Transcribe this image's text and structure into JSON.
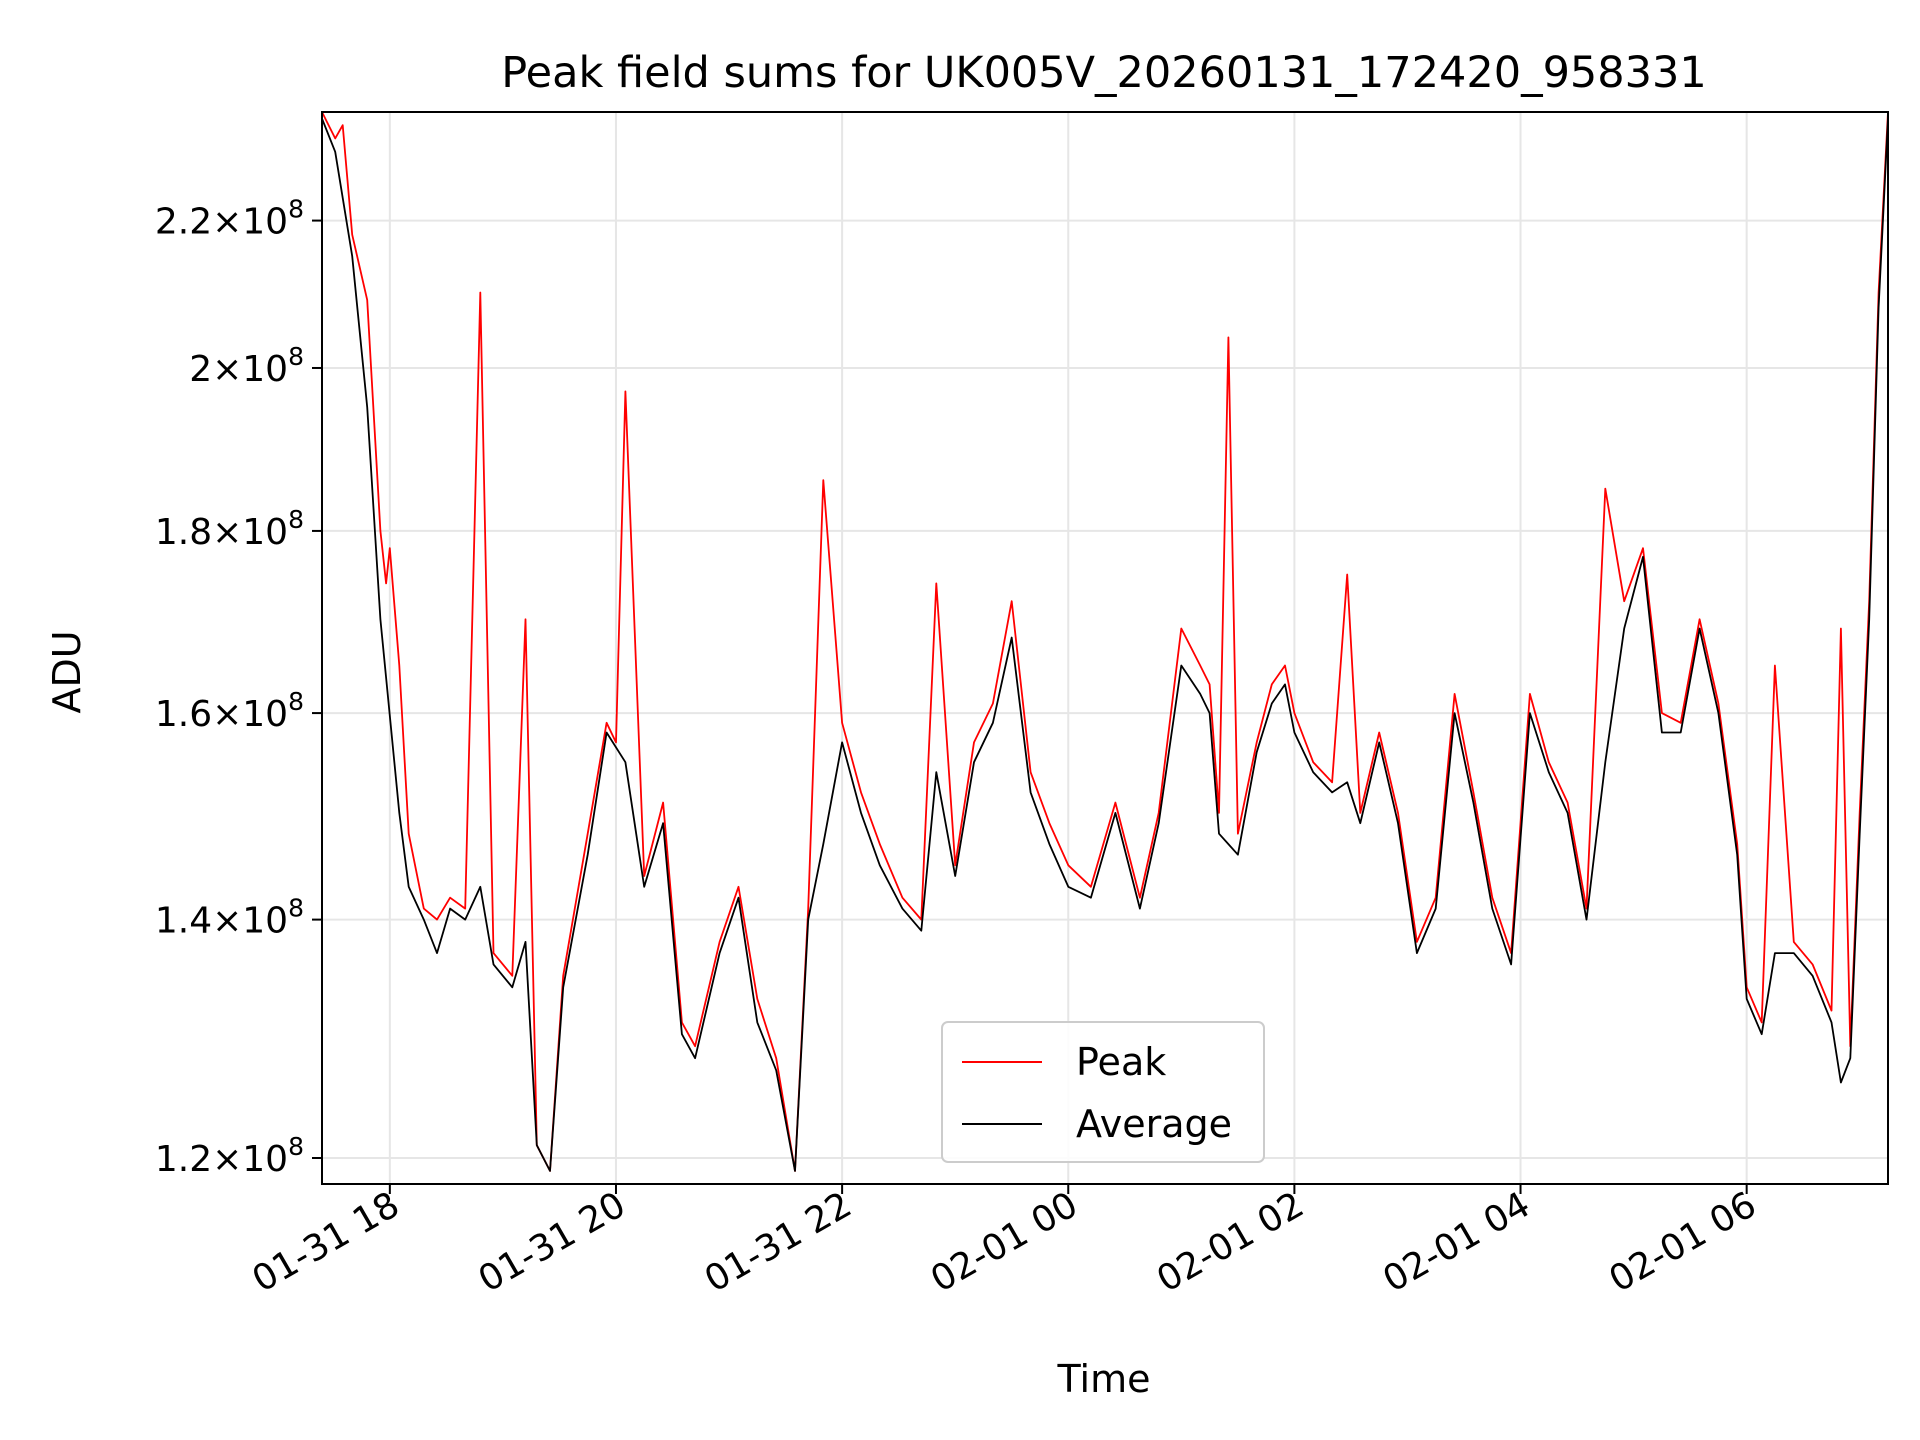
{
  "chart_data": {
    "type": "line",
    "title": "Peak field sums for UK005V_20260131_172420_958331",
    "xlabel": "Time",
    "ylabel": "ADU",
    "x_type": "datetime",
    "x_ticks": [
      "01-31 18",
      "01-31 20",
      "01-31 22",
      "02-01 00",
      "02-01 02",
      "02-01 04",
      "02-01 06"
    ],
    "xlim": [
      "2026-01-31 17:24",
      "2026-02-01 07:15"
    ],
    "y_scale": "log",
    "ylim": [
      118000000,
      236000000
    ],
    "y_ticks": [
      {
        "value": 120000000,
        "mantissa": "1.2",
        "exp": "8"
      },
      {
        "value": 140000000,
        "mantissa": "1.4",
        "exp": "8"
      },
      {
        "value": 160000000,
        "mantissa": "1.6",
        "exp": "8"
      },
      {
        "value": 180000000,
        "mantissa": "1.8",
        "exp": "8"
      },
      {
        "value": 200000000,
        "mantissa": "2",
        "exp": "8"
      },
      {
        "value": 220000000,
        "mantissa": "2.2",
        "exp": "8"
      }
    ],
    "grid": true,
    "legend_position": "lower-center",
    "series": [
      {
        "name": "Peak",
        "color": "#ff0000",
        "points": [
          [
            "2026-01-31 17:24",
            236000000
          ],
          [
            "2026-01-31 17:31",
            232000000
          ],
          [
            "2026-01-31 17:35",
            234000000
          ],
          [
            "2026-01-31 17:40",
            218000000
          ],
          [
            "2026-01-31 17:48",
            209000000
          ],
          [
            "2026-01-31 17:55",
            180000000
          ],
          [
            "2026-01-31 17:58",
            174000000
          ],
          [
            "2026-01-31 18:00",
            178000000
          ],
          [
            "2026-01-31 18:05",
            165000000
          ],
          [
            "2026-01-31 18:10",
            148000000
          ],
          [
            "2026-01-31 18:18",
            141000000
          ],
          [
            "2026-01-31 18:25",
            140000000
          ],
          [
            "2026-01-31 18:32",
            142000000
          ],
          [
            "2026-01-31 18:40",
            141000000
          ],
          [
            "2026-01-31 18:48",
            210000000
          ],
          [
            "2026-01-31 18:55",
            137000000
          ],
          [
            "2026-01-31 19:05",
            135000000
          ],
          [
            "2026-01-31 19:12",
            170000000
          ],
          [
            "2026-01-31 19:18",
            121000000
          ],
          [
            "2026-01-31 19:25",
            119000000
          ],
          [
            "2026-01-31 19:32",
            135000000
          ],
          [
            "2026-01-31 19:45",
            148000000
          ],
          [
            "2026-01-31 19:55",
            159000000
          ],
          [
            "2026-01-31 20:00",
            157000000
          ],
          [
            "2026-01-31 20:05",
            197000000
          ],
          [
            "2026-01-31 20:15",
            144000000
          ],
          [
            "2026-01-31 20:25",
            151000000
          ],
          [
            "2026-01-31 20:35",
            131000000
          ],
          [
            "2026-01-31 20:42",
            129000000
          ],
          [
            "2026-01-31 20:55",
            138000000
          ],
          [
            "2026-01-31 21:05",
            143000000
          ],
          [
            "2026-01-31 21:15",
            133000000
          ],
          [
            "2026-01-31 21:25",
            128000000
          ],
          [
            "2026-01-31 21:35",
            119000000
          ],
          [
            "2026-01-31 21:42",
            141000000
          ],
          [
            "2026-01-31 21:50",
            186000000
          ],
          [
            "2026-01-31 22:00",
            159000000
          ],
          [
            "2026-01-31 22:10",
            152000000
          ],
          [
            "2026-01-31 22:20",
            147000000
          ],
          [
            "2026-01-31 22:32",
            142000000
          ],
          [
            "2026-01-31 22:42",
            140000000
          ],
          [
            "2026-01-31 22:50",
            174000000
          ],
          [
            "2026-01-31 23:00",
            145000000
          ],
          [
            "2026-01-31 23:10",
            157000000
          ],
          [
            "2026-01-31 23:20",
            161000000
          ],
          [
            "2026-01-31 23:30",
            172000000
          ],
          [
            "2026-01-31 23:40",
            154000000
          ],
          [
            "2026-01-31 23:50",
            149000000
          ],
          [
            "2026-02-01 00:00",
            145000000
          ],
          [
            "2026-02-01 00:12",
            143000000
          ],
          [
            "2026-02-01 00:25",
            151000000
          ],
          [
            "2026-02-01 00:38",
            142000000
          ],
          [
            "2026-02-01 00:48",
            150000000
          ],
          [
            "2026-02-01 01:00",
            169000000
          ],
          [
            "2026-02-01 01:10",
            165000000
          ],
          [
            "2026-02-01 01:15",
            163000000
          ],
          [
            "2026-02-01 01:20",
            150000000
          ],
          [
            "2026-02-01 01:25",
            204000000
          ],
          [
            "2026-02-01 01:30",
            148000000
          ],
          [
            "2026-02-01 01:40",
            157000000
          ],
          [
            "2026-02-01 01:48",
            163000000
          ],
          [
            "2026-02-01 01:55",
            165000000
          ],
          [
            "2026-02-01 02:00",
            160000000
          ],
          [
            "2026-02-01 02:10",
            155000000
          ],
          [
            "2026-02-01 02:20",
            153000000
          ],
          [
            "2026-02-01 02:28",
            175000000
          ],
          [
            "2026-02-01 02:35",
            150000000
          ],
          [
            "2026-02-01 02:45",
            158000000
          ],
          [
            "2026-02-01 02:55",
            150000000
          ],
          [
            "2026-02-01 03:05",
            138000000
          ],
          [
            "2026-02-01 03:15",
            142000000
          ],
          [
            "2026-02-01 03:25",
            162000000
          ],
          [
            "2026-02-01 03:35",
            152000000
          ],
          [
            "2026-02-01 03:45",
            142000000
          ],
          [
            "2026-02-01 03:55",
            137000000
          ],
          [
            "2026-02-01 04:05",
            162000000
          ],
          [
            "2026-02-01 04:15",
            155000000
          ],
          [
            "2026-02-01 04:25",
            151000000
          ],
          [
            "2026-02-01 04:35",
            141000000
          ],
          [
            "2026-02-01 04:45",
            185000000
          ],
          [
            "2026-02-01 04:55",
            172000000
          ],
          [
            "2026-02-01 05:05",
            178000000
          ],
          [
            "2026-02-01 05:15",
            160000000
          ],
          [
            "2026-02-01 05:25",
            159000000
          ],
          [
            "2026-02-01 05:35",
            170000000
          ],
          [
            "2026-02-01 05:45",
            161000000
          ],
          [
            "2026-02-01 05:55",
            147000000
          ],
          [
            "2026-02-01 06:00",
            134000000
          ],
          [
            "2026-02-01 06:08",
            131000000
          ],
          [
            "2026-02-01 06:15",
            165000000
          ],
          [
            "2026-02-01 06:25",
            138000000
          ],
          [
            "2026-02-01 06:35",
            136000000
          ],
          [
            "2026-02-01 06:45",
            132000000
          ],
          [
            "2026-02-01 06:50",
            169000000
          ],
          [
            "2026-02-01 06:55",
            129000000
          ],
          [
            "2026-02-01 07:00",
            150000000
          ],
          [
            "2026-02-01 07:05",
            172000000
          ],
          [
            "2026-02-01 07:10",
            210000000
          ],
          [
            "2026-02-01 07:15",
            236000000
          ]
        ]
      },
      {
        "name": "Average",
        "color": "#000000",
        "points": [
          [
            "2026-01-31 17:24",
            235000000
          ],
          [
            "2026-01-31 17:31",
            230000000
          ],
          [
            "2026-01-31 17:40",
            215000000
          ],
          [
            "2026-01-31 17:48",
            195000000
          ],
          [
            "2026-01-31 17:55",
            170000000
          ],
          [
            "2026-01-31 18:05",
            150000000
          ],
          [
            "2026-01-31 18:10",
            143000000
          ],
          [
            "2026-01-31 18:18",
            140000000
          ],
          [
            "2026-01-31 18:25",
            137000000
          ],
          [
            "2026-01-31 18:32",
            141000000
          ],
          [
            "2026-01-31 18:40",
            140000000
          ],
          [
            "2026-01-31 18:48",
            143000000
          ],
          [
            "2026-01-31 18:55",
            136000000
          ],
          [
            "2026-01-31 19:05",
            134000000
          ],
          [
            "2026-01-31 19:12",
            138000000
          ],
          [
            "2026-01-31 19:18",
            121000000
          ],
          [
            "2026-01-31 19:25",
            119000000
          ],
          [
            "2026-01-31 19:32",
            134000000
          ],
          [
            "2026-01-31 19:45",
            146000000
          ],
          [
            "2026-01-31 19:55",
            158000000
          ],
          [
            "2026-01-31 20:05",
            155000000
          ],
          [
            "2026-01-31 20:15",
            143000000
          ],
          [
            "2026-01-31 20:25",
            149000000
          ],
          [
            "2026-01-31 20:35",
            130000000
          ],
          [
            "2026-01-31 20:42",
            128000000
          ],
          [
            "2026-01-31 20:55",
            137000000
          ],
          [
            "2026-01-31 21:05",
            142000000
          ],
          [
            "2026-01-31 21:15",
            131000000
          ],
          [
            "2026-01-31 21:25",
            127000000
          ],
          [
            "2026-01-31 21:35",
            119000000
          ],
          [
            "2026-01-31 21:42",
            140000000
          ],
          [
            "2026-01-31 21:50",
            147000000
          ],
          [
            "2026-01-31 22:00",
            157000000
          ],
          [
            "2026-01-31 22:10",
            150000000
          ],
          [
            "2026-01-31 22:20",
            145000000
          ],
          [
            "2026-01-31 22:32",
            141000000
          ],
          [
            "2026-01-31 22:42",
            139000000
          ],
          [
            "2026-01-31 22:50",
            154000000
          ],
          [
            "2026-01-31 23:00",
            144000000
          ],
          [
            "2026-01-31 23:10",
            155000000
          ],
          [
            "2026-01-31 23:20",
            159000000
          ],
          [
            "2026-01-31 23:30",
            168000000
          ],
          [
            "2026-01-31 23:40",
            152000000
          ],
          [
            "2026-01-31 23:50",
            147000000
          ],
          [
            "2026-02-01 00:00",
            143000000
          ],
          [
            "2026-02-01 00:12",
            142000000
          ],
          [
            "2026-02-01 00:25",
            150000000
          ],
          [
            "2026-02-01 00:38",
            141000000
          ],
          [
            "2026-02-01 00:48",
            149000000
          ],
          [
            "2026-02-01 01:00",
            165000000
          ],
          [
            "2026-02-01 01:10",
            162000000
          ],
          [
            "2026-02-01 01:15",
            160000000
          ],
          [
            "2026-02-01 01:20",
            148000000
          ],
          [
            "2026-02-01 01:25",
            147000000
          ],
          [
            "2026-02-01 01:30",
            146000000
          ],
          [
            "2026-02-01 01:40",
            156000000
          ],
          [
            "2026-02-01 01:48",
            161000000
          ],
          [
            "2026-02-01 01:55",
            163000000
          ],
          [
            "2026-02-01 02:00",
            158000000
          ],
          [
            "2026-02-01 02:10",
            154000000
          ],
          [
            "2026-02-01 02:20",
            152000000
          ],
          [
            "2026-02-01 02:28",
            153000000
          ],
          [
            "2026-02-01 02:35",
            149000000
          ],
          [
            "2026-02-01 02:45",
            157000000
          ],
          [
            "2026-02-01 02:55",
            149000000
          ],
          [
            "2026-02-01 03:05",
            137000000
          ],
          [
            "2026-02-01 03:15",
            141000000
          ],
          [
            "2026-02-01 03:25",
            160000000
          ],
          [
            "2026-02-01 03:35",
            151000000
          ],
          [
            "2026-02-01 03:45",
            141000000
          ],
          [
            "2026-02-01 03:55",
            136000000
          ],
          [
            "2026-02-01 04:05",
            160000000
          ],
          [
            "2026-02-01 04:15",
            154000000
          ],
          [
            "2026-02-01 04:25",
            150000000
          ],
          [
            "2026-02-01 04:35",
            140000000
          ],
          [
            "2026-02-01 04:45",
            155000000
          ],
          [
            "2026-02-01 04:55",
            169000000
          ],
          [
            "2026-02-01 05:05",
            177000000
          ],
          [
            "2026-02-01 05:15",
            158000000
          ],
          [
            "2026-02-01 05:25",
            158000000
          ],
          [
            "2026-02-01 05:35",
            169000000
          ],
          [
            "2026-02-01 05:45",
            160000000
          ],
          [
            "2026-02-01 05:55",
            146000000
          ],
          [
            "2026-02-01 06:00",
            133000000
          ],
          [
            "2026-02-01 06:08",
            130000000
          ],
          [
            "2026-02-01 06:15",
            137000000
          ],
          [
            "2026-02-01 06:25",
            137000000
          ],
          [
            "2026-02-01 06:35",
            135000000
          ],
          [
            "2026-02-01 06:45",
            131000000
          ],
          [
            "2026-02-01 06:50",
            126000000
          ],
          [
            "2026-02-01 06:55",
            128000000
          ],
          [
            "2026-02-01 07:00",
            148000000
          ],
          [
            "2026-02-01 07:05",
            170000000
          ],
          [
            "2026-02-01 07:10",
            208000000
          ],
          [
            "2026-02-01 07:15",
            235000000
          ]
        ]
      }
    ]
  }
}
